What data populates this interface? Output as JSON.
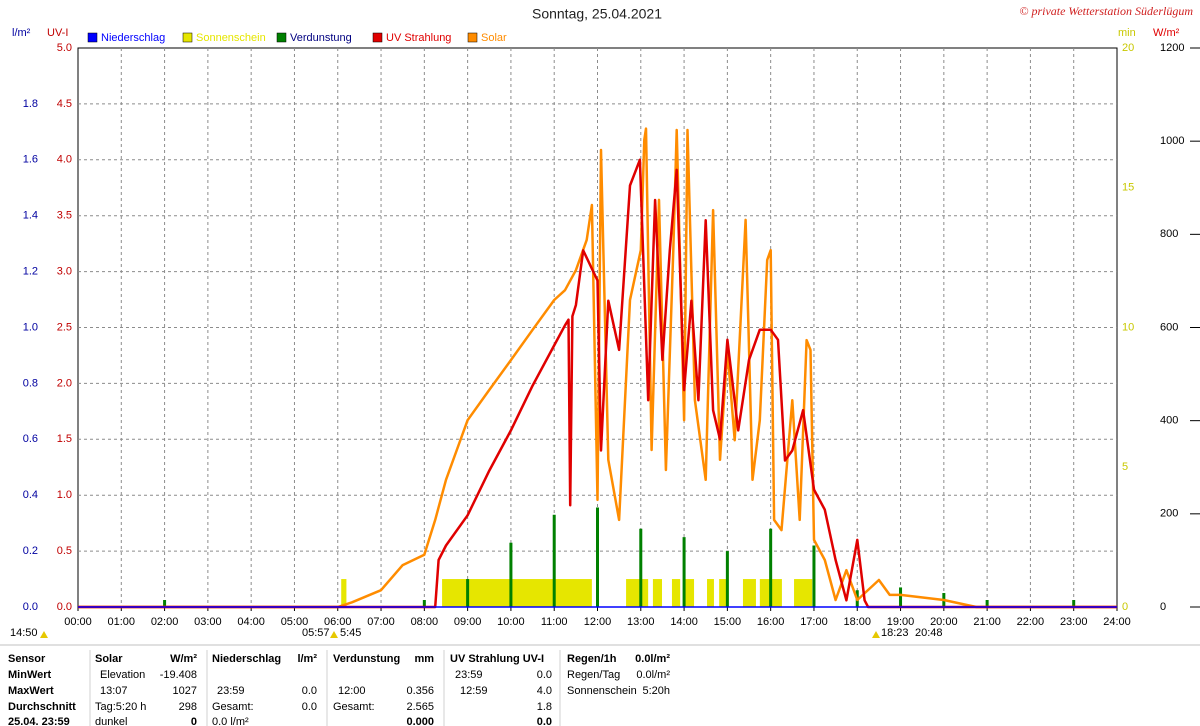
{
  "chart_data": {
    "type": "weather-day",
    "title": "Sonntag, 25.04.2021",
    "copyright": "© private Wetterstation Süderlügum",
    "xlim": [
      0,
      24
    ],
    "xticks": [
      {
        "value": 0,
        "label": "00:00"
      },
      {
        "value": 1,
        "label": "01:00"
      },
      {
        "value": 2,
        "label": "02:00"
      },
      {
        "value": 3,
        "label": "03:00"
      },
      {
        "value": 4,
        "label": "04:00"
      },
      {
        "value": 5,
        "label": "05:00"
      },
      {
        "value": 6,
        "label": "06:00"
      },
      {
        "value": 7,
        "label": "07:00"
      },
      {
        "value": 8,
        "label": "08:00"
      },
      {
        "value": 9,
        "label": "09:00"
      },
      {
        "value": 10,
        "label": "10:00"
      },
      {
        "value": 11,
        "label": "11:00"
      },
      {
        "value": 12,
        "label": "12:00"
      },
      {
        "value": 13,
        "label": "13:00"
      },
      {
        "value": 14,
        "label": "14:00"
      },
      {
        "value": 15,
        "label": "15:00"
      },
      {
        "value": 16,
        "label": "16:00"
      },
      {
        "value": 17,
        "label": "17:00"
      },
      {
        "value": 18,
        "label": "18:00"
      },
      {
        "value": 19,
        "label": "19:00"
      },
      {
        "value": 20,
        "label": "20:00"
      },
      {
        "value": 21,
        "label": "21:00"
      },
      {
        "value": 22,
        "label": "22:00"
      },
      {
        "value": 23,
        "label": "23:00"
      },
      {
        "value": 24,
        "label": "24:00"
      }
    ],
    "grid": true,
    "axes": [
      {
        "label": "l/m²",
        "color": "#0000a0",
        "lim": [
          0,
          2
        ],
        "ticks": [
          {
            "value": 0,
            "label": "0.0"
          },
          0.2,
          0.4,
          0.6,
          0.8,
          {
            "value": 1,
            "label": "1.0"
          },
          1.2,
          1.4,
          1.6,
          1.8
        ]
      },
      {
        "label": "UV-I",
        "color": "#c00000",
        "lim": [
          0,
          5
        ],
        "ticks": [
          {
            "value": 0,
            "label": "0.0"
          },
          0.5,
          {
            "value": 1,
            "label": "1.0"
          },
          1.5,
          {
            "value": 2,
            "label": "2.0"
          },
          2.5,
          {
            "value": 3,
            "label": "3.0"
          },
          3.5,
          {
            "value": 4,
            "label": "4.0"
          },
          4.5,
          {
            "value": 5,
            "label": "5.0"
          }
        ]
      },
      {
        "label": "min",
        "color": "#c8c800",
        "lim": [
          0,
          20
        ],
        "ticks": [
          0,
          5,
          10,
          15,
          20
        ]
      },
      {
        "label": "W/m²",
        "color": "#e00000",
        "lim": [
          0,
          1200
        ],
        "ticks": [
          0,
          200,
          400,
          600,
          800,
          1000,
          1200
        ]
      }
    ],
    "series": [
      {
        "name": "Niederschlag",
        "color": "#0000ff",
        "kind": "line",
        "axis": 0,
        "x": [
          0,
          24
        ],
        "values": [
          0,
          0
        ]
      },
      {
        "name": "Sonnenschein",
        "color": "#e6e600",
        "kind": "span",
        "axis": 2,
        "x": [
          6.08,
          8.41,
          12.66,
          13.28,
          13.72,
          14.02,
          14.53,
          14.81,
          15.36,
          15.75,
          16.54
        ],
        "x_end": [
          6.2,
          11.87,
          13.17,
          13.49,
          13.91,
          14.23,
          14.69,
          15.02,
          15.66,
          16.26,
          16.96
        ],
        "values": [
          1,
          1,
          1,
          1,
          1,
          1,
          1,
          1,
          1,
          1,
          1
        ]
      },
      {
        "name": "Verdunstung",
        "color": "#008000",
        "kind": "spike",
        "axis": 0,
        "x": [
          2,
          8,
          9,
          10,
          11,
          12,
          13,
          14,
          15,
          16,
          17,
          18,
          19,
          20,
          21,
          23
        ],
        "values": [
          0.025,
          0.025,
          0.1,
          0.23,
          0.33,
          0.356,
          0.28,
          0.25,
          0.2,
          0.28,
          0.22,
          0.06,
          0.07,
          0.05,
          0.025,
          0.025
        ]
      },
      {
        "name": "UV Strahlung",
        "color": "#e00000",
        "kind": "line",
        "axis": 1,
        "x": [
          0,
          8.25,
          8.33,
          8.5,
          9,
          9.5,
          10,
          10.5,
          11,
          11.25,
          11.33,
          11.37,
          11.42,
          11.5,
          11.67,
          12,
          12.08,
          12.25,
          12.5,
          12.75,
          12.98,
          13.17,
          13.33,
          13.5,
          13.67,
          13.83,
          14,
          14.17,
          14.33,
          14.5,
          14.67,
          14.83,
          15,
          15.25,
          15.5,
          15.75,
          16,
          16.17,
          16.33,
          16.5,
          16.75,
          17,
          17.25,
          17.5,
          17.75,
          18,
          18.17,
          18.25,
          24
        ],
        "values": [
          0,
          0,
          0.42,
          0.55,
          0.82,
          1.22,
          1.58,
          1.98,
          2.34,
          2.52,
          2.57,
          0.91,
          2.6,
          2.7,
          3.19,
          2.92,
          1.4,
          2.74,
          2.3,
          3.77,
          4.0,
          1.85,
          3.64,
          2.21,
          3.19,
          3.91,
          1.94,
          2.74,
          1.85,
          3.46,
          1.76,
          1.5,
          2.39,
          1.58,
          2.21,
          2.48,
          2.48,
          2.39,
          1.31,
          1.4,
          1.76,
          1.05,
          0.87,
          0.42,
          0.06,
          0.6,
          0.06,
          0,
          0
        ]
      },
      {
        "name": "Solar",
        "color": "#ff8c00",
        "kind": "line",
        "axis": 3,
        "x": [
          0,
          6,
          6.33,
          7,
          7.5,
          8,
          8.25,
          8.5,
          8.75,
          9,
          9.5,
          10,
          10.5,
          11,
          11.25,
          11.5,
          11.75,
          11.87,
          12,
          12.08,
          12.25,
          12.5,
          12.75,
          13,
          13.08,
          13.12,
          13.25,
          13.42,
          13.58,
          13.75,
          13.83,
          14,
          14.08,
          14.25,
          14.5,
          14.67,
          14.83,
          15,
          15.17,
          15.42,
          15.58,
          15.75,
          15.92,
          16,
          16.08,
          16.25,
          16.5,
          16.67,
          16.83,
          16.92,
          17,
          17.25,
          17.5,
          17.75,
          18,
          18.5,
          18.75,
          19,
          20,
          20.75,
          24
        ],
        "values": [
          0,
          0,
          10,
          36,
          90,
          112,
          187,
          273,
          337,
          401,
          466,
          530,
          595,
          659,
          680,
          723,
          788,
          863,
          230,
          981,
          316,
          187,
          659,
          766,
          1003,
          1027,
          337,
          874,
          294,
          766,
          1024,
          401,
          1024,
          444,
          273,
          852,
          316,
          552,
          358,
          831,
          273,
          401,
          745,
          766,
          187,
          165,
          444,
          187,
          573,
          552,
          144,
          101,
          15,
          79,
          15,
          58,
          26,
          26,
          15,
          0,
          0
        ]
      }
    ],
    "annotations": [
      "14:50",
      "05:57",
      "5:45",
      "18:23",
      "20:48"
    ],
    "table": {
      "rows": [
        [
          "Sensor",
          "Solar",
          "W/m²",
          "Niederschlag",
          "l/m²",
          "Verdunstung",
          "mm",
          "UV Strahlung UV-I",
          null,
          "Regen/1h",
          "0.0l/m²"
        ],
        [
          "MinWert",
          "Elevation",
          "-19.408",
          null,
          null,
          null,
          null,
          "23:59",
          "0.0",
          "Regen/Tag",
          "0.0l/m²"
        ],
        [
          "MaxWert",
          "13:07",
          "1027",
          "23:59",
          "0.0",
          "12:00",
          "0.356",
          "12:59",
          "4.0",
          "Sonnenschein",
          "5:20h"
        ],
        [
          "Durchschnitt",
          "Tag:5:20 h",
          "298",
          "Gesamt:",
          "0.0",
          "Gesamt:",
          "2.565",
          null,
          "1.8",
          null,
          null
        ],
        [
          "25.04. 23:59",
          "dunkel",
          "0",
          "0.0 l/m²",
          null,
          null,
          "0.000",
          null,
          "0.0",
          null,
          null
        ]
      ]
    }
  }
}
